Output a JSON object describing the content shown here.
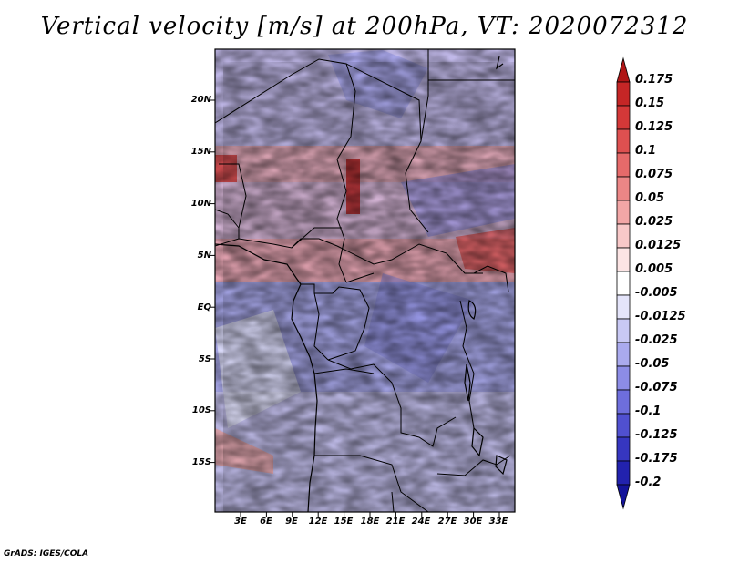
{
  "title": "Vertical velocity [m/s] at 200hPa, VT: 2020072312",
  "credit": "GrADS: IGES/COLA",
  "lat_labels": [
    "20N",
    "15N",
    "10N",
    "5N",
    "EQ",
    "5S",
    "10S",
    "15S"
  ],
  "lon_labels": [
    "3E",
    "6E",
    "9E",
    "12E",
    "15E",
    "18E",
    "21E",
    "24E",
    "27E",
    "30E",
    "33E"
  ],
  "colorbar": {
    "labels": [
      "0.175",
      "0.15",
      "0.125",
      "0.1",
      "0.075",
      "0.05",
      "0.025",
      "0.0125",
      "0.005",
      "-0.005",
      "-0.0125",
      "-0.025",
      "-0.05",
      "-0.075",
      "-0.1",
      "-0.125",
      "-0.175",
      "-0.2"
    ],
    "colors": [
      "#b01616",
      "#c52626",
      "#d43838",
      "#de5050",
      "#e66a6a",
      "#ec8686",
      "#f2a6a6",
      "#f8c8c8",
      "#fce4e4",
      "#ffffff",
      "#e4e4fa",
      "#c8c8f4",
      "#aaaaee",
      "#8c8ce6",
      "#6e6edc",
      "#5050d0",
      "#3636c0",
      "#2222ae",
      "#14149a"
    ]
  }
}
